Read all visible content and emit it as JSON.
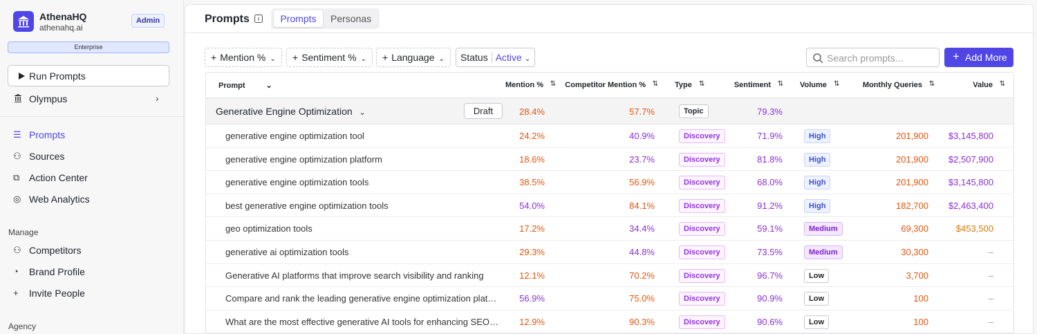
{
  "sidebar": {
    "org_name": "AthenaHQ",
    "org_domain": "athenahq.ai",
    "role": "Admin",
    "plan": "Enterprise",
    "run_button": "Run Prompts",
    "workspace": "Olympus",
    "nav": [
      "Prompts",
      "Sources",
      "Action Center",
      "Web Analytics"
    ],
    "manage_heading": "Manage",
    "manage": [
      "Competitors",
      "Brand Profile",
      "Invite People"
    ],
    "agency_heading": "Agency"
  },
  "header": {
    "title": "Prompts",
    "tabs": [
      "Prompts",
      "Personas"
    ]
  },
  "filters": {
    "chips": [
      "Mention %",
      "Sentiment %",
      "Language"
    ],
    "status_label": "Status",
    "status_value": "Active",
    "search_placeholder": "Search prompts...",
    "add_button": "Add More"
  },
  "table": {
    "columns": [
      "Prompt",
      "Mention %",
      "Competitor Mention %",
      "Type",
      "Sentiment",
      "Volume",
      "Monthly Queries",
      "Value"
    ],
    "group": {
      "name": "Generative Engine Optimization",
      "status": "Draft",
      "mention": "28.4%",
      "mention_color": "#e5540c",
      "competitor": "57.7%",
      "competitor_color": "#e5540c",
      "type": "Topic",
      "sentiment": "79.3%"
    },
    "rows": [
      {
        "prompt": "generative engine optimization tool",
        "mention": "24.2%",
        "mention_color": "#e5540c",
        "competitor": "40.9%",
        "competitor_color": "#8b2fd6",
        "type": "Discovery",
        "sentiment": "71.9%",
        "volume": "High",
        "queries": "201,900",
        "value": "$3,145,800",
        "value_color": "#8b2fd6"
      },
      {
        "prompt": "generative engine optimization platform",
        "mention": "18.6%",
        "mention_color": "#e5540c",
        "competitor": "23.7%",
        "competitor_color": "#8b2fd6",
        "type": "Discovery",
        "sentiment": "81.8%",
        "volume": "High",
        "queries": "201,900",
        "value": "$2,507,900",
        "value_color": "#8b2fd6"
      },
      {
        "prompt": "generative engine optimization tools",
        "mention": "38.5%",
        "mention_color": "#e5540c",
        "competitor": "56.9%",
        "competitor_color": "#e5540c",
        "type": "Discovery",
        "sentiment": "68.0%",
        "volume": "High",
        "queries": "201,900",
        "value": "$3,145,800",
        "value_color": "#8b2fd6"
      },
      {
        "prompt": "best generative engine optimization tools",
        "mention": "54.0%",
        "mention_color": "#8b2fd6",
        "competitor": "84.1%",
        "competitor_color": "#e5540c",
        "type": "Discovery",
        "sentiment": "91.2%",
        "volume": "High",
        "queries": "182,700",
        "value": "$2,463,400",
        "value_color": "#8b2fd6"
      },
      {
        "prompt": "geo optimization tools",
        "mention": "17.2%",
        "mention_color": "#e5540c",
        "competitor": "34.4%",
        "competitor_color": "#8b2fd6",
        "type": "Discovery",
        "sentiment": "59.1%",
        "volume": "Medium",
        "queries": "69,300",
        "value": "$453,500",
        "value_color": "#d97706"
      },
      {
        "prompt": "generative ai optimization tools",
        "mention": "29.3%",
        "mention_color": "#e5540c",
        "competitor": "44.8%",
        "competitor_color": "#8b2fd6",
        "type": "Discovery",
        "sentiment": "73.5%",
        "volume": "Medium",
        "queries": "30,300",
        "value": "–",
        "value_color": "#9a9a9a"
      },
      {
        "prompt": "Generative AI platforms that improve search visibility and ranking",
        "mention": "12.1%",
        "mention_color": "#e5540c",
        "competitor": "70.2%",
        "competitor_color": "#e5540c",
        "type": "Discovery",
        "sentiment": "96.7%",
        "volume": "Low",
        "queries": "3,700",
        "value": "–",
        "value_color": "#9a9a9a"
      },
      {
        "prompt": "Compare and rank the leading generative engine optimization plat…",
        "mention": "56.9%",
        "mention_color": "#8b2fd6",
        "competitor": "75.0%",
        "competitor_color": "#e5540c",
        "type": "Discovery",
        "sentiment": "90.9%",
        "volume": "Low",
        "queries": "100",
        "value": "–",
        "value_color": "#9a9a9a"
      },
      {
        "prompt": "What are the most effective generative AI tools for enhancing SEO…",
        "mention": "12.9%",
        "mention_color": "#e5540c",
        "competitor": "90.3%",
        "competitor_color": "#e5540c",
        "type": "Discovery",
        "sentiment": "90.6%",
        "volume": "Low",
        "queries": "100",
        "value": "–",
        "value_color": "#9a9a9a"
      }
    ]
  }
}
